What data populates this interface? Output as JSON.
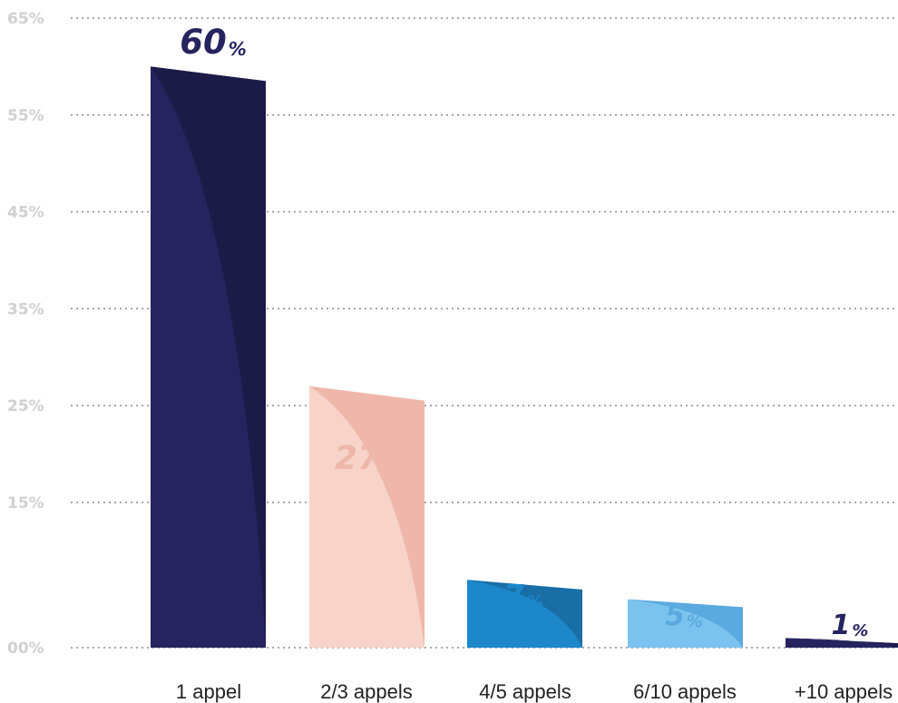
{
  "chart_data": {
    "type": "bar",
    "categories": [
      "1 appel",
      "2/3 appels",
      "4/5 appels",
      "6/10 appels",
      "+10 appels"
    ],
    "values": [
      60,
      27,
      7,
      5,
      1
    ],
    "value_labels": [
      "60",
      "27",
      "7",
      "5",
      "1"
    ],
    "value_unit": "%",
    "y_ticks": [
      "65%",
      "55%",
      "45%",
      "35%",
      "25%",
      "15%",
      "00%"
    ],
    "y_tick_values": [
      65,
      55,
      45,
      35,
      25,
      15,
      0
    ],
    "ylim": [
      0,
      65
    ],
    "grid": true,
    "title": "",
    "xlabel": "",
    "ylabel": "",
    "colors": {
      "bar_fronts": [
        "#25245f",
        "#f7d3c9",
        "#1c87c9",
        "#7bc3ef",
        "#25245f"
      ],
      "bar_backs": [
        "#1c1b47",
        "#eeb7aa",
        "#186ea5",
        "#5aa9df",
        "#1b1a4a"
      ],
      "value_label_colors": [
        "#25245f",
        "#eeb7aa",
        "#1c87c9",
        "#5aa9df",
        "#25245f"
      ],
      "tick_label_color": "#d0d0d0",
      "category_label_color": "#222222",
      "grid_color": "#8b8b8b"
    }
  }
}
